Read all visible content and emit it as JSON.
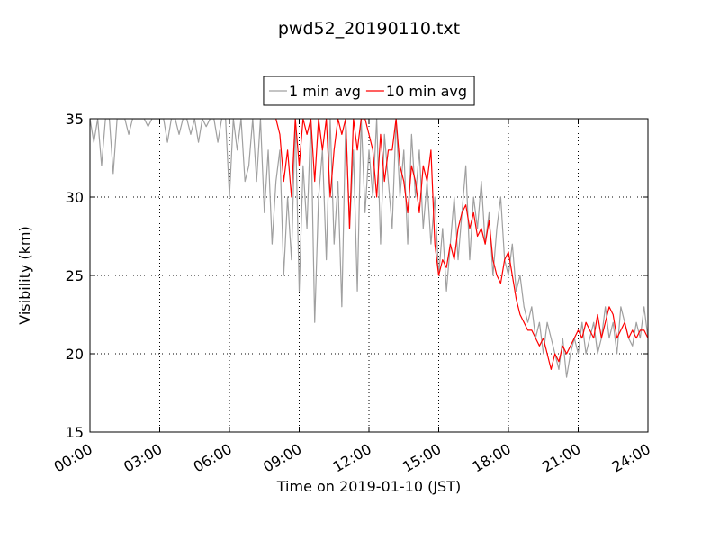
{
  "chart_data": {
    "type": "line",
    "title": "pwd52_20190110.txt",
    "x_label": "Time on 2019-01-10 (JST)",
    "y_label": "Visibility (km)",
    "xlim": [
      0,
      1440
    ],
    "xticks": [
      {
        "value": 0,
        "label": "00:00"
      },
      {
        "value": 180,
        "label": "03:00"
      },
      {
        "value": 360,
        "label": "06:00"
      },
      {
        "value": 540,
        "label": "09:00"
      },
      {
        "value": 720,
        "label": "12:00"
      },
      {
        "value": 900,
        "label": "15:00"
      },
      {
        "value": 1080,
        "label": "18:00"
      },
      {
        "value": 1260,
        "label": "21:00"
      },
      {
        "value": 1440,
        "label": "24:00"
      }
    ],
    "ylim": [
      15,
      35
    ],
    "yticks": [
      15,
      20,
      25,
      30,
      35
    ],
    "grid": true,
    "legend": "upper center",
    "x": [
      0,
      10,
      20,
      30,
      40,
      50,
      60,
      70,
      80,
      90,
      100,
      110,
      120,
      130,
      140,
      150,
      160,
      170,
      180,
      190,
      200,
      210,
      220,
      230,
      240,
      250,
      260,
      270,
      280,
      290,
      300,
      310,
      320,
      330,
      340,
      350,
      360,
      370,
      380,
      390,
      400,
      410,
      420,
      430,
      440,
      450,
      460,
      470,
      480,
      490,
      500,
      510,
      520,
      530,
      540,
      550,
      560,
      570,
      580,
      590,
      600,
      610,
      620,
      630,
      640,
      650,
      660,
      670,
      680,
      690,
      700,
      710,
      720,
      730,
      740,
      750,
      760,
      770,
      780,
      790,
      800,
      810,
      820,
      830,
      840,
      850,
      860,
      870,
      880,
      890,
      900,
      910,
      920,
      930,
      940,
      950,
      960,
      970,
      980,
      990,
      1000,
      1010,
      1020,
      1030,
      1040,
      1050,
      1060,
      1070,
      1080,
      1090,
      1100,
      1110,
      1120,
      1130,
      1140,
      1150,
      1160,
      1170,
      1180,
      1190,
      1200,
      1210,
      1220,
      1230,
      1240,
      1250,
      1260,
      1270,
      1280,
      1290,
      1300,
      1310,
      1320,
      1330,
      1340,
      1350,
      1360,
      1370,
      1380,
      1390,
      1400,
      1410,
      1420,
      1430,
      1440
    ],
    "series": [
      {
        "name": "1 min avg",
        "color": "#a0a0a0",
        "values": [
          35,
          33.5,
          35,
          32,
          35,
          35,
          31.5,
          35,
          35,
          35,
          34,
          35,
          35,
          35,
          35,
          34.5,
          35,
          35,
          35,
          35,
          33.5,
          35,
          35,
          34,
          35,
          35,
          34,
          35,
          33.5,
          35,
          34.5,
          35,
          35,
          33.5,
          35,
          35,
          30,
          35,
          33,
          35,
          31,
          32,
          35,
          31,
          35,
          29,
          33,
          27,
          31,
          33,
          25,
          30,
          26,
          35,
          24,
          32,
          28,
          35,
          22,
          30,
          33,
          26,
          35,
          27,
          31,
          23,
          35,
          28,
          33,
          24,
          35,
          29,
          33,
          30,
          35,
          27,
          34,
          31,
          28,
          35,
          30,
          33,
          27,
          34,
          30,
          33,
          28,
          31,
          27,
          30,
          25,
          28,
          24,
          27,
          30,
          26,
          29,
          32,
          26,
          30,
          28,
          31,
          27,
          29,
          25,
          28,
          30,
          26,
          25,
          27,
          24,
          25,
          23,
          22,
          23,
          21,
          22,
          20,
          22,
          21,
          20,
          19,
          21,
          18.5,
          20,
          21,
          20,
          22,
          20,
          21,
          22,
          20,
          21,
          23,
          21,
          22,
          20,
          23,
          22,
          21,
          20.5,
          22,
          21,
          23,
          21
        ]
      },
      {
        "name": "10 min avg",
        "color": "#ff0000",
        "values": [
          null,
          null,
          null,
          null,
          null,
          null,
          null,
          null,
          null,
          null,
          null,
          null,
          null,
          null,
          null,
          null,
          null,
          null,
          null,
          null,
          null,
          null,
          null,
          null,
          null,
          null,
          null,
          null,
          null,
          null,
          null,
          null,
          null,
          null,
          null,
          null,
          null,
          null,
          null,
          null,
          null,
          null,
          null,
          null,
          null,
          null,
          null,
          null,
          35,
          34,
          31,
          33,
          30,
          35,
          32,
          35,
          34,
          35,
          31,
          35,
          33,
          35,
          30,
          33,
          35,
          34,
          35,
          28,
          35,
          33,
          35,
          35,
          34,
          33,
          30,
          34,
          31,
          33,
          33,
          35,
          32,
          31,
          29,
          32,
          31,
          29,
          32,
          31,
          33,
          27,
          25,
          26,
          25.5,
          27,
          26,
          28,
          29,
          29.5,
          28,
          29,
          27.5,
          28,
          27,
          28.5,
          26,
          25,
          24.5,
          26,
          26.5,
          25,
          23.5,
          22.5,
          22,
          21.5,
          21.5,
          21,
          20.5,
          21,
          20,
          19,
          20,
          19.5,
          20.5,
          20,
          20.5,
          21,
          21.5,
          21,
          22,
          21.5,
          21,
          22.5,
          21,
          22,
          23,
          22.5,
          21,
          21.5,
          22,
          21,
          21.5,
          21,
          21.5,
          21.5,
          21
        ]
      }
    ]
  }
}
